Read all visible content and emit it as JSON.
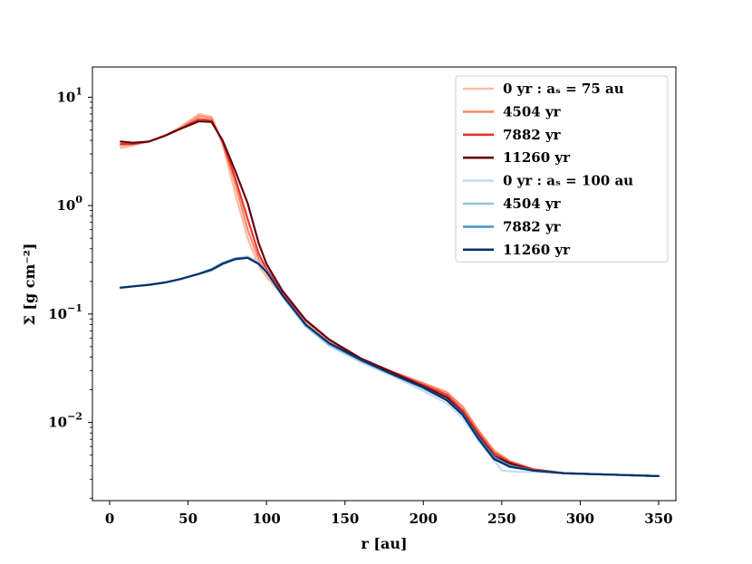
{
  "chart_data": {
    "type": "line",
    "xlabel": "r [au]",
    "ylabel": "Σ [g cm⁻²]",
    "xlim": [
      -11,
      361
    ],
    "ylim": [
      0.0019,
      19
    ],
    "yscale": "log",
    "xticks": [
      0,
      50,
      100,
      150,
      200,
      250,
      300,
      350
    ],
    "xtick_labels": [
      "0",
      "50",
      "100",
      "150",
      "200",
      "250",
      "300",
      "350"
    ],
    "yticks": [
      0.01,
      0.1,
      1,
      10
    ],
    "ytick_labels": [
      {
        "base": "10",
        "exp": "−2"
      },
      {
        "base": "10",
        "exp": "−1"
      },
      {
        "base": "10",
        "exp": "0"
      },
      {
        "base": "10",
        "exp": "1"
      }
    ],
    "legend_position": "top-right",
    "series": [
      {
        "name": "0 yr : a_s = 75 au",
        "legend_label": "0 yr  :  aₛ = 75 au",
        "color": "#fcbba1",
        "x": [
          7,
          15,
          25,
          35,
          45,
          57,
          65,
          72,
          80,
          88,
          95,
          100,
          110,
          125,
          140,
          160,
          180,
          200,
          215,
          225,
          235,
          245,
          255,
          270,
          290,
          320,
          350
        ],
        "y": [
          3.4,
          3.6,
          3.9,
          4.4,
          5.3,
          7.0,
          6.6,
          3.7,
          1.3,
          0.5,
          0.28,
          0.22,
          0.15,
          0.085,
          0.057,
          0.039,
          0.029,
          0.022,
          0.0175,
          0.0125,
          0.0078,
          0.005,
          0.0041,
          0.0036,
          0.0034,
          0.0033,
          0.0032
        ]
      },
      {
        "name": "4504 yr",
        "legend_label": "4504 yr",
        "color": "#fb8a6a",
        "x": [
          7,
          15,
          25,
          35,
          45,
          57,
          65,
          72,
          80,
          88,
          95,
          100,
          110,
          125,
          140,
          160,
          180,
          200,
          215,
          225,
          235,
          245,
          255,
          270,
          290,
          320,
          350
        ],
        "y": [
          3.6,
          3.7,
          3.9,
          4.4,
          5.2,
          6.7,
          6.4,
          3.8,
          1.6,
          0.6,
          0.32,
          0.24,
          0.155,
          0.087,
          0.058,
          0.039,
          0.0295,
          0.023,
          0.019,
          0.014,
          0.0085,
          0.0055,
          0.0044,
          0.0037,
          0.0034,
          0.0033,
          0.0032
        ]
      },
      {
        "name": "7882 yr",
        "legend_label": "7882 yr",
        "color": "#e5362d",
        "x": [
          7,
          15,
          25,
          35,
          45,
          57,
          65,
          72,
          80,
          88,
          95,
          100,
          110,
          125,
          140,
          160,
          180,
          200,
          215,
          225,
          235,
          245,
          255,
          270,
          290,
          320,
          350
        ],
        "y": [
          3.7,
          3.7,
          3.9,
          4.4,
          5.1,
          6.3,
          6.1,
          3.9,
          1.8,
          0.75,
          0.36,
          0.26,
          0.16,
          0.088,
          0.058,
          0.039,
          0.0293,
          0.0222,
          0.018,
          0.013,
          0.008,
          0.0052,
          0.0043,
          0.0037,
          0.0034,
          0.0033,
          0.0032
        ]
      },
      {
        "name": "11260 yr",
        "legend_label": "11260 yr",
        "color": "#67000d",
        "x": [
          7,
          15,
          25,
          35,
          45,
          57,
          65,
          72,
          80,
          88,
          95,
          100,
          110,
          125,
          140,
          160,
          180,
          200,
          215,
          225,
          235,
          245,
          255,
          270,
          290,
          320,
          350
        ],
        "y": [
          3.9,
          3.8,
          3.9,
          4.4,
          5.1,
          6.0,
          5.9,
          4.0,
          2.1,
          1.05,
          0.45,
          0.29,
          0.165,
          0.088,
          0.058,
          0.039,
          0.029,
          0.0215,
          0.017,
          0.0122,
          0.0075,
          0.0049,
          0.0042,
          0.0036,
          0.0034,
          0.0033,
          0.0032
        ]
      },
      {
        "name": "0 yr : a_s = 100 au",
        "legend_label": "0 yr  :  aₛ = 100 au",
        "color": "#c6dbef",
        "x": [
          7,
          15,
          25,
          35,
          45,
          57,
          65,
          72,
          80,
          88,
          95,
          100,
          110,
          125,
          140,
          160,
          180,
          200,
          215,
          225,
          235,
          245,
          250,
          260,
          270,
          290,
          320,
          350
        ],
        "y": [
          0.175,
          0.18,
          0.186,
          0.195,
          0.21,
          0.235,
          0.26,
          0.295,
          0.325,
          0.34,
          0.3,
          0.25,
          0.145,
          0.076,
          0.051,
          0.036,
          0.027,
          0.0195,
          0.015,
          0.011,
          0.0068,
          0.0045,
          0.0036,
          0.0035,
          0.0035,
          0.0034,
          0.0033,
          0.0032
        ]
      },
      {
        "name": "4504 yr",
        "legend_label": "4504 yr",
        "color": "#94c4df",
        "x": [
          7,
          15,
          25,
          35,
          45,
          57,
          65,
          72,
          80,
          88,
          95,
          100,
          110,
          125,
          140,
          160,
          180,
          200,
          215,
          225,
          235,
          245,
          255,
          270,
          290,
          320,
          350
        ],
        "y": [
          0.175,
          0.18,
          0.186,
          0.195,
          0.21,
          0.235,
          0.26,
          0.295,
          0.325,
          0.335,
          0.295,
          0.25,
          0.15,
          0.078,
          0.052,
          0.037,
          0.0275,
          0.0205,
          0.016,
          0.0118,
          0.0072,
          0.0047,
          0.004,
          0.0036,
          0.0034,
          0.0033,
          0.0032
        ]
      },
      {
        "name": "7882 yr",
        "legend_label": "7882 yr",
        "color": "#4a98c9",
        "x": [
          7,
          15,
          25,
          35,
          45,
          57,
          65,
          72,
          80,
          88,
          95,
          100,
          110,
          125,
          140,
          160,
          180,
          200,
          215,
          225,
          235,
          245,
          255,
          270,
          290,
          320,
          350
        ],
        "y": [
          0.175,
          0.18,
          0.186,
          0.195,
          0.21,
          0.235,
          0.26,
          0.295,
          0.325,
          0.33,
          0.29,
          0.245,
          0.15,
          0.079,
          0.053,
          0.0375,
          0.0278,
          0.021,
          0.0162,
          0.012,
          0.0073,
          0.0048,
          0.004,
          0.0036,
          0.0034,
          0.0033,
          0.0032
        ]
      },
      {
        "name": "11260 yr",
        "legend_label": "11260 yr",
        "color": "#08306b",
        "x": [
          7,
          15,
          25,
          35,
          45,
          57,
          65,
          72,
          80,
          88,
          95,
          100,
          110,
          125,
          140,
          160,
          180,
          200,
          215,
          225,
          235,
          245,
          255,
          270,
          290,
          320,
          350
        ],
        "y": [
          0.175,
          0.18,
          0.186,
          0.195,
          0.21,
          0.235,
          0.255,
          0.29,
          0.32,
          0.33,
          0.29,
          0.245,
          0.15,
          0.08,
          0.054,
          0.038,
          0.028,
          0.021,
          0.016,
          0.0118,
          0.0071,
          0.0046,
          0.0039,
          0.0036,
          0.0034,
          0.0033,
          0.0032
        ]
      }
    ]
  }
}
